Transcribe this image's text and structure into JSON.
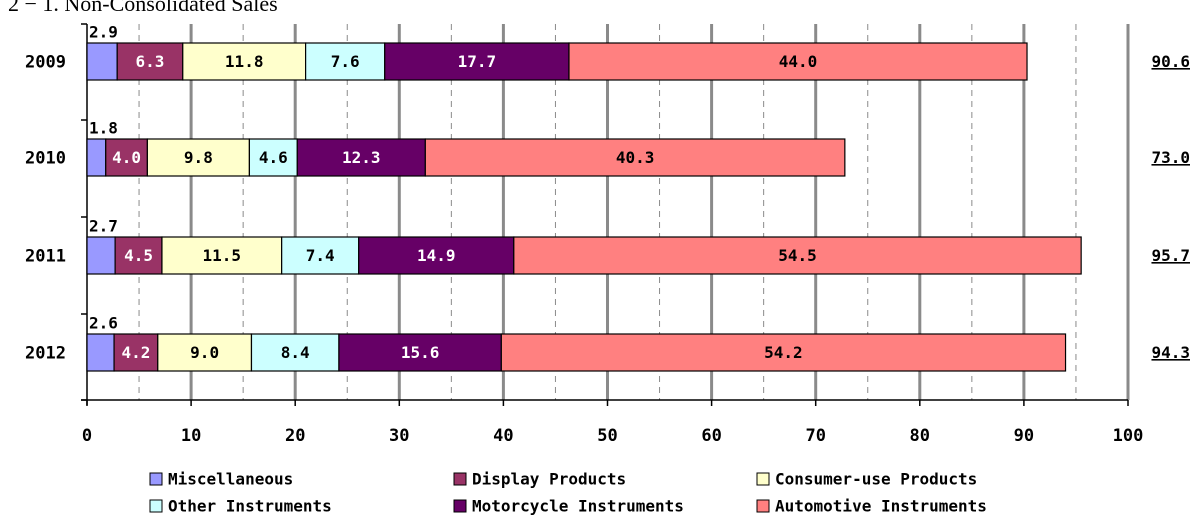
{
  "page": {
    "heading": "2 − 1.   Non-Consolidated Sales"
  },
  "chart_data": {
    "type": "bar",
    "orientation": "horizontal",
    "stacked": true,
    "categories": [
      "2009",
      "2010",
      "2011",
      "2012"
    ],
    "series": [
      {
        "name": "Miscellaneous",
        "color": "#9999ff",
        "labels": [
          "2.9",
          "1.8",
          "2.7",
          "2.6"
        ],
        "values": [
          2.9,
          1.8,
          2.7,
          2.6
        ]
      },
      {
        "name": "Display Products",
        "color": "#993366",
        "labels": [
          "6.3",
          "4.0",
          "4.5",
          "4.2"
        ],
        "values": [
          6.3,
          4.0,
          4.5,
          4.2
        ]
      },
      {
        "name": "Consumer-use Products",
        "color": "#ffffcc",
        "labels": [
          "11.8",
          "9.8",
          "11.5",
          "9.0"
        ],
        "values": [
          11.8,
          9.8,
          11.5,
          9.0
        ]
      },
      {
        "name": "Other Instruments",
        "color": "#ccffff",
        "labels": [
          "7.6",
          "4.6",
          "7.4",
          "8.4"
        ],
        "values": [
          7.6,
          4.6,
          7.4,
          8.4
        ]
      },
      {
        "name": "Motorcycle Instruments",
        "color": "#660066",
        "labels": [
          "17.7",
          "12.3",
          "14.9",
          "15.6"
        ],
        "values": [
          17.7,
          12.3,
          14.9,
          15.6
        ]
      },
      {
        "name": "Automotive Instruments",
        "color": "#ff8080",
        "labels": [
          "44.0",
          "40.3",
          "54.5",
          "54.2"
        ],
        "values": [
          44.0,
          40.3,
          54.5,
          54.2
        ]
      }
    ],
    "totals": [
      "90.6",
      "73.0",
      "95.7",
      "94.3"
    ],
    "x_ticks": [
      "0",
      "10",
      "20",
      "30",
      "40",
      "50",
      "60",
      "70",
      "80",
      "90",
      "100"
    ],
    "xlim": [
      0,
      100
    ],
    "grid": "vertical major solid, minor dashed",
    "legend_position": "bottom",
    "legend_order": [
      "Miscellaneous",
      "Display Products",
      "Consumer-use Products",
      "Other Instruments",
      "Motorcycle Instruments",
      "Automotive Instruments"
    ]
  }
}
